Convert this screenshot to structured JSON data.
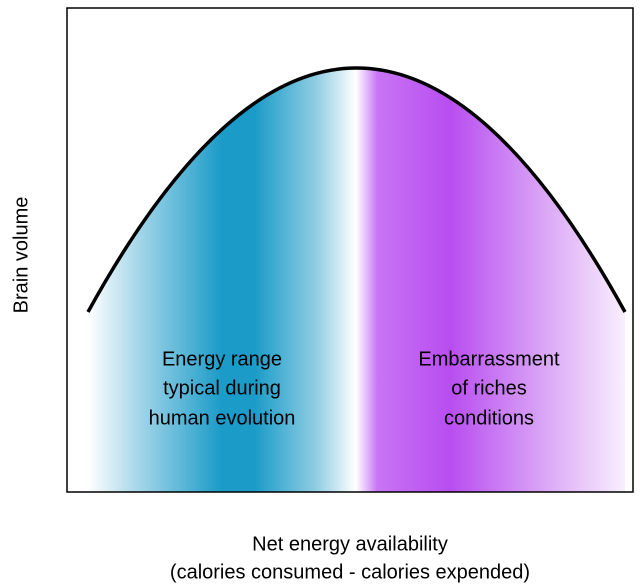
{
  "axes": {
    "y_label": "Brain volume",
    "x_label": [
      "Net energy availability",
      "(calories consumed - calories expended)"
    ]
  },
  "regions": [
    {
      "lines": [
        "Energy range",
        "typical during",
        "human evolution"
      ]
    },
    {
      "lines": [
        "Embarrassment",
        "of riches",
        "conditions"
      ]
    }
  ]
}
